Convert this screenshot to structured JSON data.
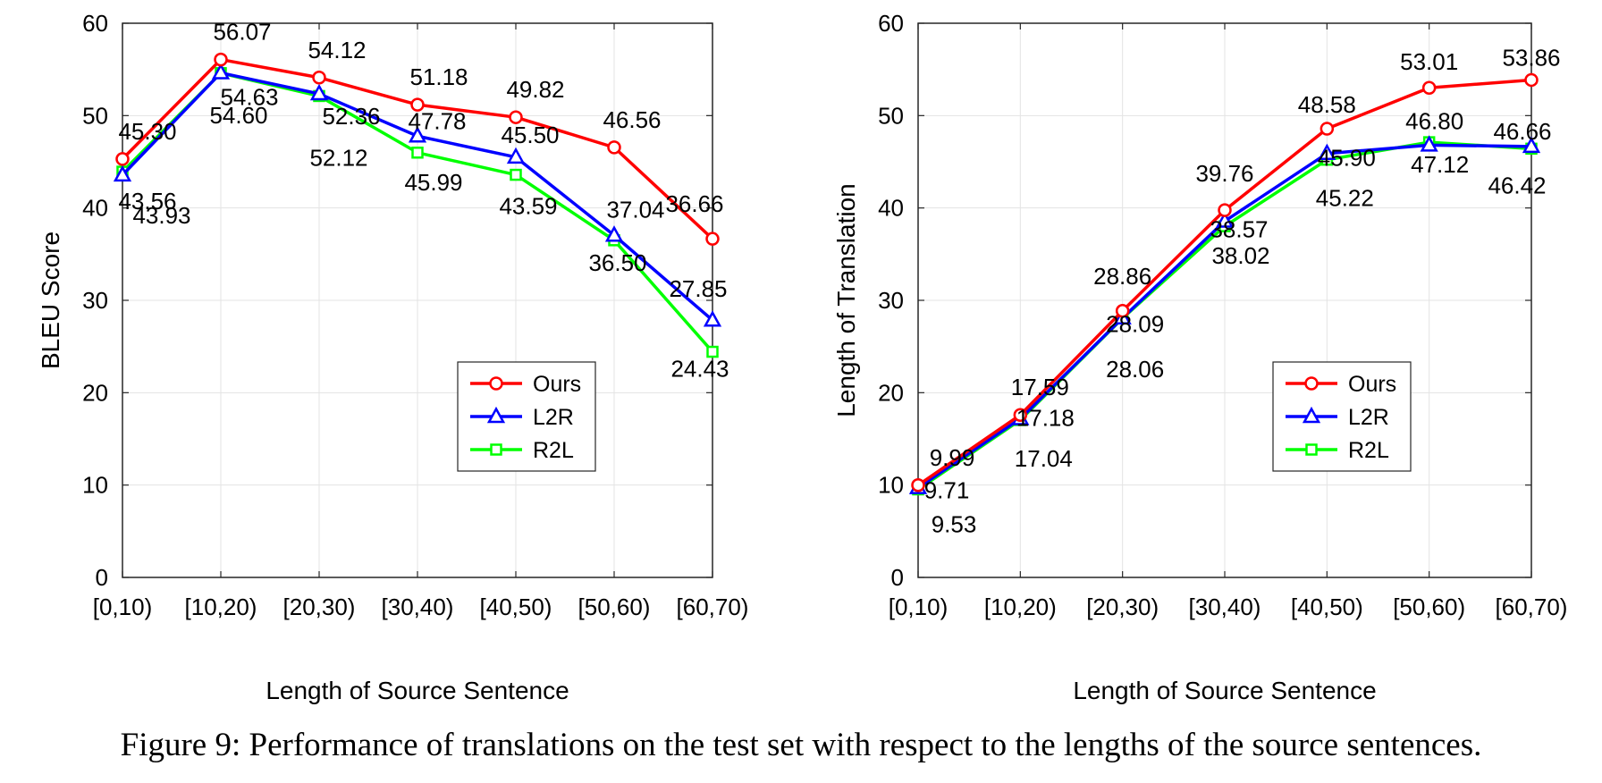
{
  "chart_data": [
    {
      "type": "line",
      "categories": [
        "[0,10)",
        "[10,20)",
        "[20,30)",
        "[30,40)",
        "[40,50)",
        "[50,60)",
        "[60,70)"
      ],
      "xlabel": "Length of Source Sentence",
      "ylabel": "BLEU Score",
      "ylim": [
        0,
        60
      ],
      "yticks": [
        0,
        10,
        20,
        30,
        40,
        50,
        60
      ],
      "yticks_text": [
        "0",
        "10",
        "20",
        "30",
        "40",
        "50",
        "60"
      ],
      "grid": true,
      "legend_position": "lower-right",
      "series": [
        {
          "name": "Ours",
          "color": "#ff0000",
          "marker": "circle",
          "values": [
            45.3,
            56.07,
            54.12,
            51.18,
            49.82,
            46.56,
            36.66
          ],
          "labels": [
            "45.30",
            "56.07",
            "54.12",
            "51.18",
            "49.82",
            "46.56",
            "36.66"
          ]
        },
        {
          "name": "L2R",
          "color": "#0000ff",
          "marker": "triangle",
          "values": [
            43.56,
            54.63,
            52.36,
            47.78,
            45.5,
            37.04,
            27.85
          ],
          "labels": [
            "43.56",
            "54.63",
            "52.36",
            "47.78",
            "45.50",
            "37.04",
            "27.85"
          ]
        },
        {
          "name": "R2L",
          "color": "#00ff00",
          "marker": "square",
          "values": [
            43.93,
            54.6,
            52.12,
            45.99,
            43.59,
            36.5,
            24.43
          ],
          "labels": [
            "43.93",
            "54.60",
            "52.12",
            "45.99",
            "43.59",
            "36.50",
            "24.43"
          ]
        }
      ]
    },
    {
      "type": "line",
      "categories": [
        "[0,10)",
        "[10,20)",
        "[20,30)",
        "[30,40)",
        "[40,50)",
        "[50,60)",
        "[60,70)"
      ],
      "xlabel": "Length of Source Sentence",
      "ylabel": "Length of Translation",
      "ylim": [
        0,
        60
      ],
      "yticks": [
        0,
        10,
        20,
        30,
        40,
        50,
        60
      ],
      "yticks_text": [
        "0",
        "10",
        "20",
        "30",
        "40",
        "50",
        "60"
      ],
      "grid": true,
      "legend_position": "lower-right",
      "series": [
        {
          "name": "Ours",
          "color": "#ff0000",
          "marker": "circle",
          "values": [
            9.99,
            17.59,
            28.86,
            39.76,
            48.58,
            53.01,
            53.86
          ],
          "labels": [
            "9.99",
            "17.59",
            "28.86",
            "39.76",
            "48.58",
            "53.01",
            "53.86"
          ]
        },
        {
          "name": "L2R",
          "color": "#0000ff",
          "marker": "triangle",
          "values": [
            9.71,
            17.18,
            28.09,
            38.57,
            45.9,
            46.8,
            46.66
          ],
          "labels": [
            "9.71",
            "17.18",
            "28.09",
            "38.57",
            "45.90",
            "46.80",
            "46.66"
          ]
        },
        {
          "name": "R2L",
          "color": "#00ff00",
          "marker": "square",
          "values": [
            9.53,
            17.04,
            28.06,
            38.02,
            45.22,
            47.12,
            46.42
          ],
          "labels": [
            "9.53",
            "17.04",
            "28.06",
            "38.02",
            "45.22",
            "47.12",
            "46.42"
          ]
        }
      ]
    }
  ],
  "caption": "Figure 9: Performance of translations on the test set with respect to the lengths of the source sentences."
}
